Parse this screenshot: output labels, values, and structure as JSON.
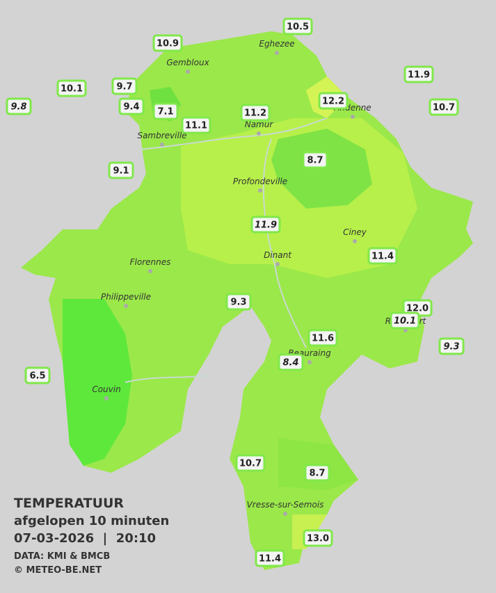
{
  "header": {
    "title": "TEMPERATUUR",
    "subtitle": "afgelopen 10 minuten",
    "datetime": "07-03-2026  |  20:10",
    "source": "DATA: KMI & BMCB",
    "copyright": "© METEO-BE.NET"
  },
  "cities": [
    "Eghezee",
    "Gembloux",
    "Sambreville",
    "Namur",
    "Andenne",
    "Profondeville",
    "Ciney",
    "Florennes",
    "Dinant",
    "Philippeville",
    "Rochefort",
    "Beauraing",
    "Couvin",
    "Vresse-sur-Semois"
  ],
  "stations": [
    {
      "label": "10.5",
      "italic": false
    },
    {
      "label": "10.9",
      "italic": false
    },
    {
      "label": "11.9",
      "italic": false
    },
    {
      "label": "10.1",
      "italic": false
    },
    {
      "label": "9.7",
      "italic": false
    },
    {
      "label": "9.8",
      "italic": true
    },
    {
      "label": "12.2",
      "italic": false
    },
    {
      "label": "9.4",
      "italic": false
    },
    {
      "label": "7.1",
      "italic": false
    },
    {
      "label": "11.2",
      "italic": false
    },
    {
      "label": "10.7",
      "italic": false
    },
    {
      "label": "11.1",
      "italic": false
    },
    {
      "label": "8.7",
      "italic": false
    },
    {
      "label": "9.1",
      "italic": false
    },
    {
      "label": "11.9",
      "italic": true
    },
    {
      "label": "11.4",
      "italic": false
    },
    {
      "label": "9.3",
      "italic": false
    },
    {
      "label": "12.0",
      "italic": false
    },
    {
      "label": "10.1",
      "italic": true
    },
    {
      "label": "11.6",
      "italic": false
    },
    {
      "label": "9.3",
      "italic": true
    },
    {
      "label": "8.4",
      "italic": true
    },
    {
      "label": "6.5",
      "italic": false
    },
    {
      "label": "10.7",
      "italic": false
    },
    {
      "label": "8.7",
      "italic": false
    },
    {
      "label": "13.0",
      "italic": false
    },
    {
      "label": "11.4",
      "italic": false
    }
  ]
}
